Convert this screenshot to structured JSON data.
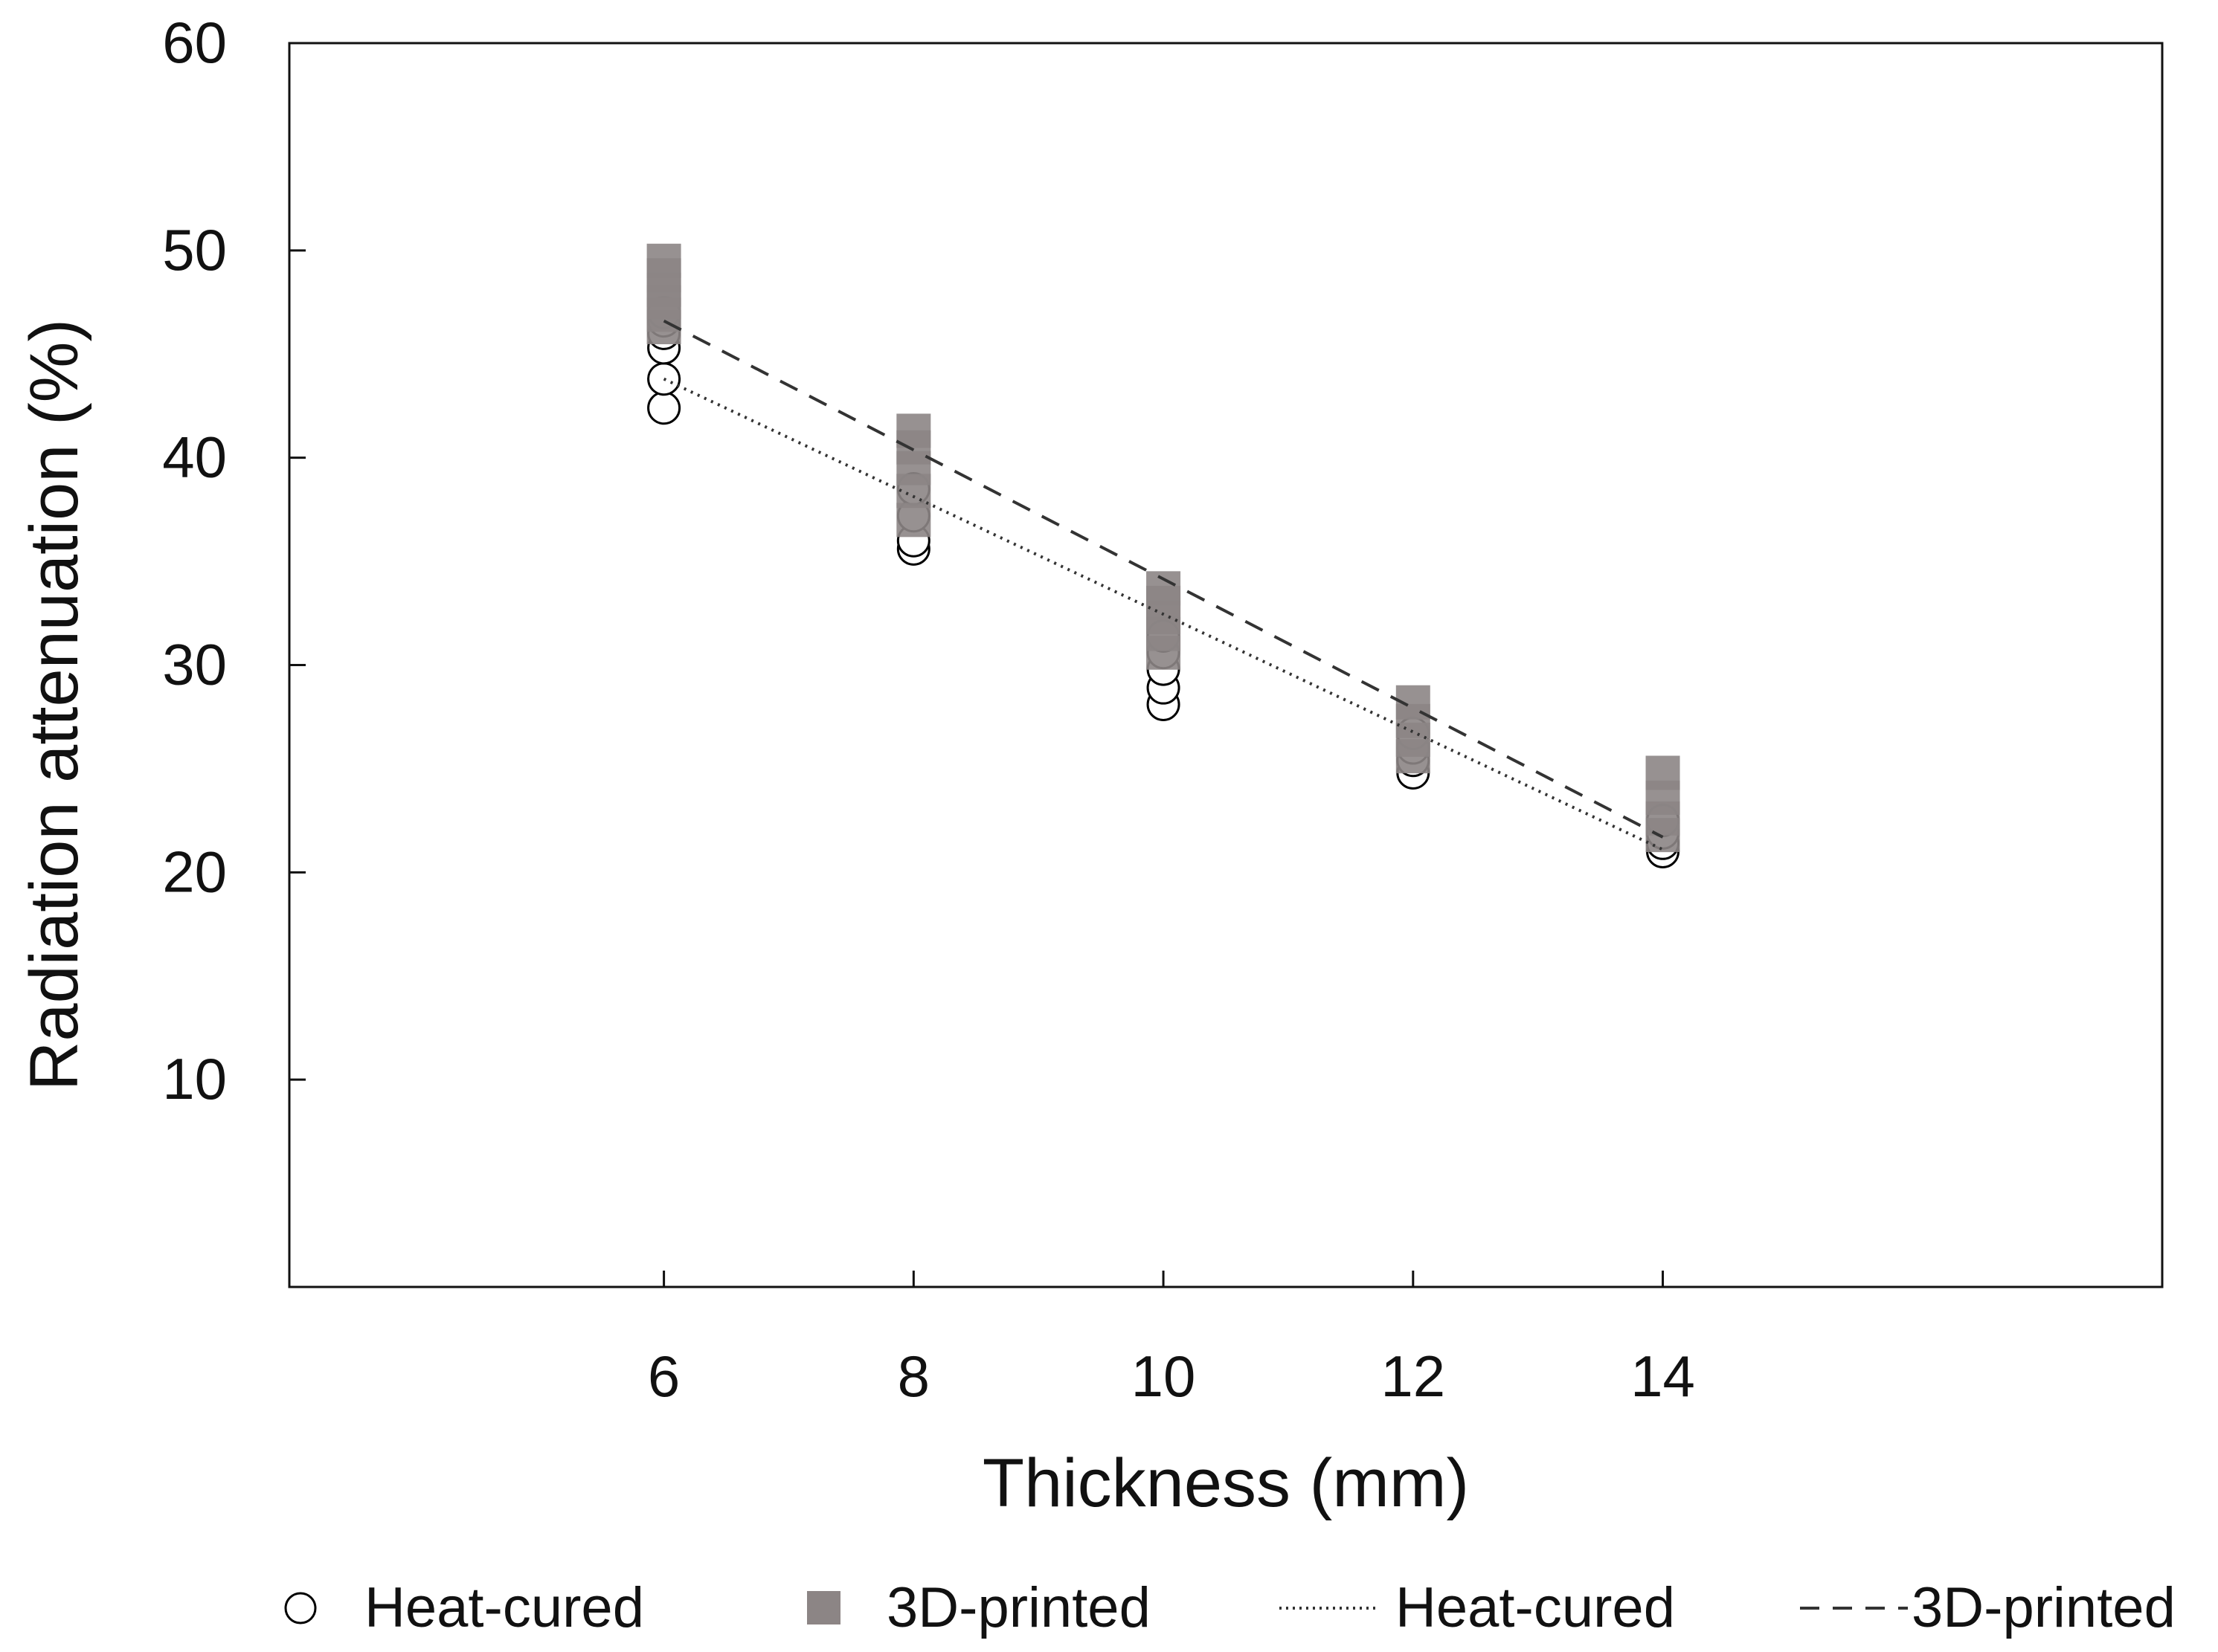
{
  "chart_data": {
    "type": "scatter",
    "title": "",
    "xlabel": "Thickness (mm)",
    "ylabel": "Radiation attenuation (%)",
    "xlim": [
      3,
      18
    ],
    "ylim": [
      0,
      60
    ],
    "x_ticks": [
      6,
      8,
      10,
      12,
      14
    ],
    "y_ticks": [
      10,
      20,
      30,
      40,
      50,
      60
    ],
    "grid": false,
    "legend_position": "bottom",
    "series": [
      {
        "name": "Heat-cured",
        "kind": "points",
        "marker": "open-circle",
        "color": "#000000",
        "x": [
          6,
          6,
          6,
          6,
          6,
          6,
          8,
          8,
          8,
          8,
          10,
          10,
          10,
          10,
          10,
          12,
          12,
          12,
          12,
          14,
          14,
          14,
          14
        ],
        "y": [
          42.4,
          43.8,
          45.3,
          46.0,
          46.6,
          47.0,
          35.6,
          36.0,
          37.2,
          38.5,
          28.1,
          28.9,
          29.8,
          30.6,
          31.4,
          24.8,
          25.4,
          26.0,
          26.7,
          21.0,
          21.4,
          21.9,
          22.5
        ]
      },
      {
        "name": "3D-printed",
        "kind": "points",
        "marker": "filled-square",
        "color": "#8c8585",
        "x": [
          6,
          6,
          6,
          6,
          6,
          6,
          8,
          8,
          8,
          8,
          8,
          10,
          10,
          10,
          10,
          10,
          12,
          12,
          12,
          12,
          14,
          14,
          14,
          14
        ],
        "y": [
          46.3,
          46.9,
          47.5,
          48.1,
          48.8,
          49.5,
          37.0,
          38.4,
          39.5,
          40.5,
          41.3,
          30.6,
          31.5,
          32.3,
          33.0,
          33.7,
          25.6,
          26.4,
          27.3,
          28.2,
          21.8,
          22.6,
          23.6,
          24.8
        ]
      },
      {
        "name": "Heat-cured",
        "kind": "fit-line",
        "style": "dotted",
        "color": "#333333",
        "x": [
          6,
          14
        ],
        "y": [
          43.8,
          21.1
        ]
      },
      {
        "name": "3D-printed",
        "kind": "fit-line",
        "style": "dashed",
        "color": "#333333",
        "x": [
          6,
          14
        ],
        "y": [
          46.6,
          21.7
        ]
      }
    ]
  }
}
